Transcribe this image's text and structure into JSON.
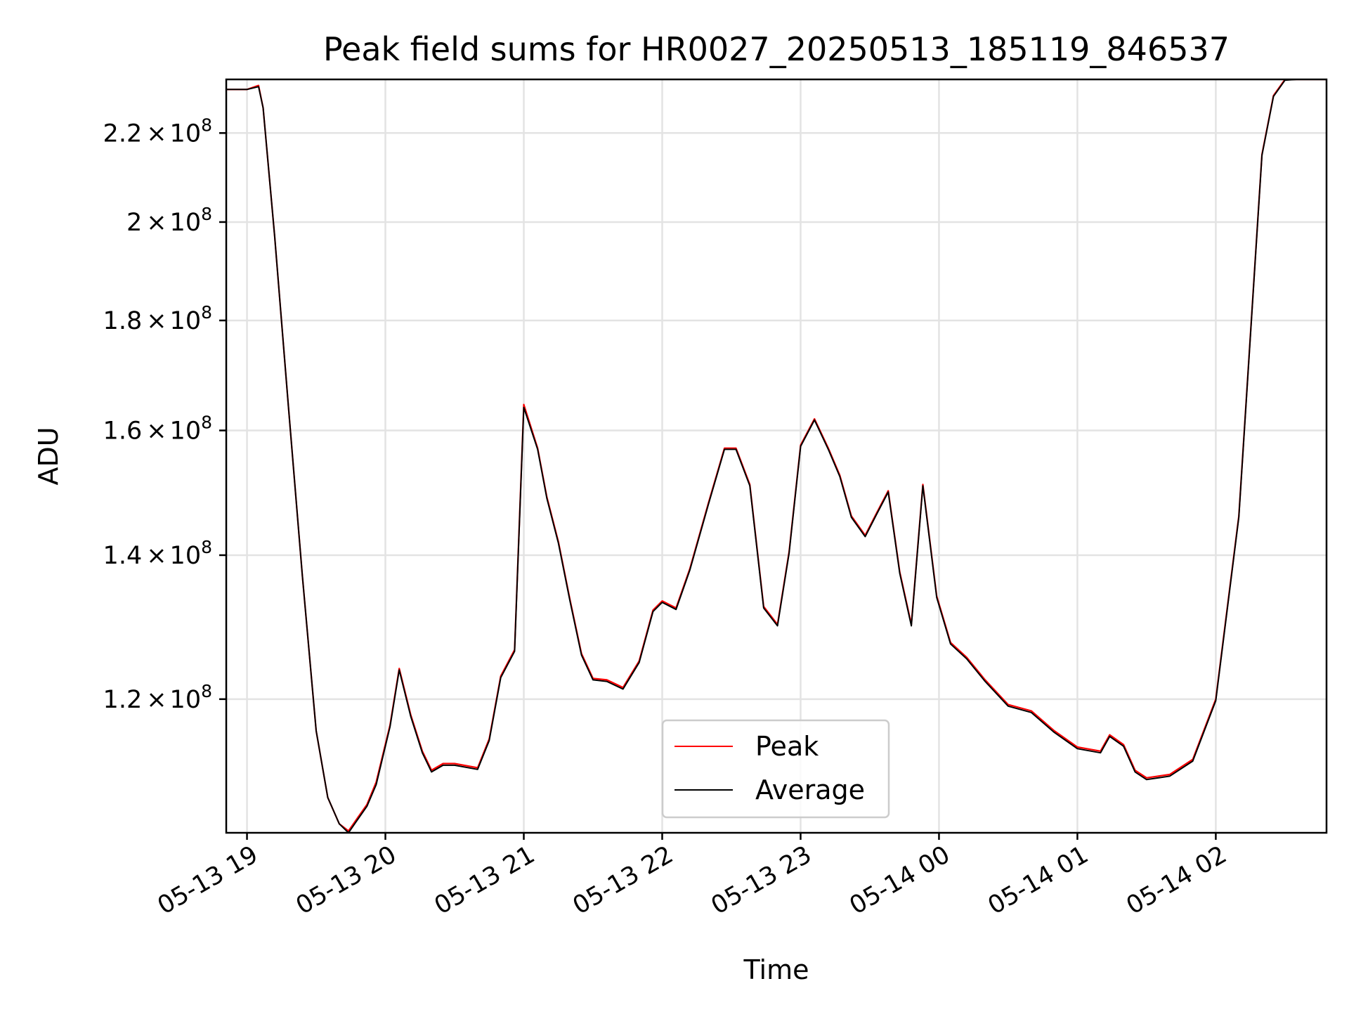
{
  "chart_data": {
    "type": "line",
    "title": "Peak field sums for HR0027_20250513_185119_846537",
    "xlabel": "Time",
    "ylabel": "ADU",
    "y_scale": "log",
    "xlim": [
      "2025-05-13 18:51",
      "2025-05-14 02:48"
    ],
    "ylim": [
      104000000,
      233000000
    ],
    "grid": true,
    "legend_position": "lower center",
    "x_tick_labels": [
      "05-13 19",
      "05-13 20",
      "05-13 21",
      "05-13 22",
      "05-13 23",
      "05-14 00",
      "05-14 01",
      "05-14 02"
    ],
    "x_ticks": [
      "2025-05-13 19:00",
      "2025-05-13 20:00",
      "2025-05-13 21:00",
      "2025-05-13 22:00",
      "2025-05-13 23:00",
      "2025-05-14 00:00",
      "2025-05-14 01:00",
      "2025-05-14 02:00"
    ],
    "y_ticks": [
      {
        "value": 120000000,
        "mantissa": "1.2",
        "exponent": "8"
      },
      {
        "value": 140000000,
        "mantissa": "1.4",
        "exponent": "8"
      },
      {
        "value": 160000000,
        "mantissa": "1.6",
        "exponent": "8"
      },
      {
        "value": 180000000,
        "mantissa": "1.8",
        "exponent": "8"
      },
      {
        "value": 200000000,
        "mantissa": "2",
        "exponent": "8"
      },
      {
        "value": 220000000,
        "mantissa": "2.2",
        "exponent": "8"
      }
    ],
    "series": [
      {
        "name": "Peak",
        "color": "#ff0000",
        "x": [
          "2025-05-13 18:51",
          "2025-05-13 19:00",
          "2025-05-13 19:05",
          "2025-05-13 19:07",
          "2025-05-13 19:12",
          "2025-05-13 19:18",
          "2025-05-13 19:24",
          "2025-05-13 19:30",
          "2025-05-13 19:35",
          "2025-05-13 19:40",
          "2025-05-13 19:44",
          "2025-05-13 19:48",
          "2025-05-13 19:52",
          "2025-05-13 19:56",
          "2025-05-13 20:02",
          "2025-05-13 20:06",
          "2025-05-13 20:11",
          "2025-05-13 20:16",
          "2025-05-13 20:20",
          "2025-05-13 20:25",
          "2025-05-13 20:30",
          "2025-05-13 20:40",
          "2025-05-13 20:45",
          "2025-05-13 20:50",
          "2025-05-13 20:56",
          "2025-05-13 21:00",
          "2025-05-13 21:06",
          "2025-05-13 21:10",
          "2025-05-13 21:15",
          "2025-05-13 21:20",
          "2025-05-13 21:25",
          "2025-05-13 21:30",
          "2025-05-13 21:36",
          "2025-05-13 21:43",
          "2025-05-13 21:50",
          "2025-05-13 21:56",
          "2025-05-13 22:00",
          "2025-05-13 22:06",
          "2025-05-13 22:12",
          "2025-05-13 22:20",
          "2025-05-13 22:27",
          "2025-05-13 22:32",
          "2025-05-13 22:38",
          "2025-05-13 22:44",
          "2025-05-13 22:50",
          "2025-05-13 22:55",
          "2025-05-13 23:00",
          "2025-05-13 23:06",
          "2025-05-13 23:12",
          "2025-05-13 23:17",
          "2025-05-13 23:22",
          "2025-05-13 23:28",
          "2025-05-13 23:33",
          "2025-05-13 23:38",
          "2025-05-13 23:43",
          "2025-05-13 23:48",
          "2025-05-13 23:53",
          "2025-05-13 23:59",
          "2025-05-14 00:05",
          "2025-05-14 00:12",
          "2025-05-14 00:20",
          "2025-05-14 00:30",
          "2025-05-14 00:40",
          "2025-05-14 00:50",
          "2025-05-14 01:00",
          "2025-05-14 01:10",
          "2025-05-14 01:14",
          "2025-05-14 01:20",
          "2025-05-14 01:25",
          "2025-05-14 01:30",
          "2025-05-14 01:40",
          "2025-05-14 01:50",
          "2025-05-14 02:00",
          "2025-05-14 02:10",
          "2025-05-14 02:20",
          "2025-05-14 02:25",
          "2025-05-14 02:30",
          "2025-05-14 02:35",
          "2025-05-14 02:40",
          "2025-05-14 02:48"
        ],
        "y": [
          230500000,
          230500000,
          231500000,
          226000000,
          197000000,
          164000000,
          137000000,
          116000000,
          108000000,
          105000000,
          104200000,
          105700000,
          107200000,
          109800000,
          116700000,
          124000000,
          118000000,
          113500000,
          111200000,
          112000000,
          112000000,
          111500000,
          115000000,
          123000000,
          126500000,
          164500000,
          157000000,
          149000000,
          142000000,
          133500000,
          126000000,
          122700000,
          122500000,
          121500000,
          125000000,
          132000000,
          133300000,
          132300000,
          138000000,
          148000000,
          157000000,
          157000000,
          151000000,
          132500000,
          130000000,
          140500000,
          157500000,
          162000000,
          157000000,
          152500000,
          146000000,
          143000000,
          146500000,
          150000000,
          137500000,
          130000000,
          151000000,
          134000000,
          127500000,
          125500000,
          122500000,
          119300000,
          118500000,
          116000000,
          114000000,
          113500000,
          115500000,
          114300000,
          111200000,
          110300000,
          110700000,
          112500000,
          120000000,
          146000000,
          215000000,
          229000000,
          233000000,
          233000000,
          233000000,
          233000000
        ]
      },
      {
        "name": "Average",
        "color": "#000000",
        "x": [
          "2025-05-13 18:51",
          "2025-05-13 19:00",
          "2025-05-13 19:05",
          "2025-05-13 19:07",
          "2025-05-13 19:12",
          "2025-05-13 19:18",
          "2025-05-13 19:24",
          "2025-05-13 19:30",
          "2025-05-13 19:35",
          "2025-05-13 19:40",
          "2025-05-13 19:44",
          "2025-05-13 19:48",
          "2025-05-13 19:52",
          "2025-05-13 19:56",
          "2025-05-13 20:02",
          "2025-05-13 20:06",
          "2025-05-13 20:11",
          "2025-05-13 20:16",
          "2025-05-13 20:20",
          "2025-05-13 20:25",
          "2025-05-13 20:30",
          "2025-05-13 20:40",
          "2025-05-13 20:45",
          "2025-05-13 20:50",
          "2025-05-13 20:56",
          "2025-05-13 21:00",
          "2025-05-13 21:06",
          "2025-05-13 21:10",
          "2025-05-13 21:15",
          "2025-05-13 21:20",
          "2025-05-13 21:25",
          "2025-05-13 21:30",
          "2025-05-13 21:36",
          "2025-05-13 21:43",
          "2025-05-13 21:50",
          "2025-05-13 21:56",
          "2025-05-13 22:00",
          "2025-05-13 22:06",
          "2025-05-13 22:12",
          "2025-05-13 22:20",
          "2025-05-13 22:27",
          "2025-05-13 22:32",
          "2025-05-13 22:38",
          "2025-05-13 22:44",
          "2025-05-13 22:50",
          "2025-05-13 22:55",
          "2025-05-13 23:00",
          "2025-05-13 23:06",
          "2025-05-13 23:12",
          "2025-05-13 23:17",
          "2025-05-13 23:22",
          "2025-05-13 23:28",
          "2025-05-13 23:33",
          "2025-05-13 23:38",
          "2025-05-13 23:43",
          "2025-05-13 23:48",
          "2025-05-13 23:53",
          "2025-05-13 23:59",
          "2025-05-14 00:05",
          "2025-05-14 00:12",
          "2025-05-14 00:20",
          "2025-05-14 00:30",
          "2025-05-14 00:40",
          "2025-05-14 00:50",
          "2025-05-14 01:00",
          "2025-05-14 01:10",
          "2025-05-14 01:14",
          "2025-05-14 01:20",
          "2025-05-14 01:25",
          "2025-05-14 01:30",
          "2025-05-14 01:40",
          "2025-05-14 01:50",
          "2025-05-14 02:00",
          "2025-05-14 02:10",
          "2025-05-14 02:20",
          "2025-05-14 02:25",
          "2025-05-14 02:30",
          "2025-05-14 02:35",
          "2025-05-14 02:40",
          "2025-05-14 02:48"
        ],
        "y": [
          230500000,
          230500000,
          231200000,
          226000000,
          197000000,
          164000000,
          137000000,
          116000000,
          108000000,
          105000000,
          104000000,
          105500000,
          107000000,
          109500000,
          116500000,
          123800000,
          117800000,
          113300000,
          111000000,
          111800000,
          111800000,
          111300000,
          114800000,
          122800000,
          126300000,
          164000000,
          156800000,
          148800000,
          141800000,
          133300000,
          125800000,
          122500000,
          122300000,
          121300000,
          124800000,
          131800000,
          133100000,
          132100000,
          137800000,
          147800000,
          156800000,
          156800000,
          150800000,
          132300000,
          129800000,
          140300000,
          157300000,
          161800000,
          156800000,
          152300000,
          145800000,
          142800000,
          146300000,
          149800000,
          137300000,
          129800000,
          150800000,
          133800000,
          127300000,
          125300000,
          122300000,
          119100000,
          118300000,
          115800000,
          113800000,
          113300000,
          115300000,
          114100000,
          111000000,
          110100000,
          110500000,
          112300000,
          119800000,
          145800000,
          214800000,
          228800000,
          232800000,
          233000000,
          233000000,
          233000000
        ]
      }
    ]
  }
}
